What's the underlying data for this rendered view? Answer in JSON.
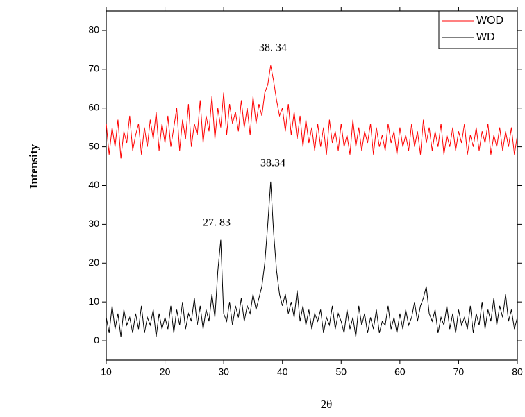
{
  "chart_data": {
    "type": "line",
    "xlabel": "2θ",
    "ylabel": "Intensity",
    "annotations": [
      "38. 34",
      "38.34",
      "27. 83"
    ],
    "xlim": [
      10,
      80
    ],
    "xticks": [
      10,
      20,
      30,
      40,
      50,
      60,
      70,
      80
    ],
    "ylim": [
      -5,
      85
    ],
    "yticks": [
      0,
      10,
      20,
      30,
      40,
      50,
      60,
      70,
      80
    ],
    "legend": "upper right",
    "x": [
      10,
      10.5,
      11,
      11.5,
      12,
      12.5,
      13,
      13.5,
      14,
      14.5,
      15,
      15.5,
      16,
      16.5,
      17,
      17.5,
      18,
      18.5,
      19,
      19.5,
      20,
      20.5,
      21,
      21.5,
      22,
      22.5,
      23,
      23.5,
      24,
      24.5,
      25,
      25.5,
      26,
      26.5,
      27,
      27.5,
      28,
      28.5,
      29,
      29.5,
      30,
      30.5,
      31,
      31.5,
      32,
      32.5,
      33,
      33.5,
      34,
      34.5,
      35,
      35.5,
      36,
      36.5,
      37,
      37.5,
      38,
      38.5,
      39,
      39.5,
      40,
      40.5,
      41,
      41.5,
      42,
      42.5,
      43,
      43.5,
      44,
      44.5,
      45,
      45.5,
      46,
      46.5,
      47,
      47.5,
      48,
      48.5,
      49,
      49.5,
      50,
      50.5,
      51,
      51.5,
      52,
      52.5,
      53,
      53.5,
      54,
      54.5,
      55,
      55.5,
      56,
      56.5,
      57,
      57.5,
      58,
      58.5,
      59,
      59.5,
      60,
      60.5,
      61,
      61.5,
      62,
      62.5,
      63,
      63.5,
      64,
      64.5,
      65,
      65.5,
      66,
      66.5,
      67,
      67.5,
      68,
      68.5,
      69,
      69.5,
      70,
      70.5,
      71,
      71.5,
      72,
      72.5,
      73,
      73.5,
      74,
      74.5,
      75,
      75.5,
      76,
      76.5,
      77,
      77.5,
      78,
      78.5,
      79,
      79.5,
      80
    ],
    "series": [
      {
        "name": "WOD",
        "color": "#ff0000",
        "values": [
          56,
          48,
          55,
          50,
          57,
          47,
          54,
          51,
          58,
          49,
          53,
          56,
          48,
          55,
          50,
          57,
          52,
          59,
          49,
          56,
          51,
          58,
          50,
          55,
          60,
          49,
          57,
          52,
          61,
          50,
          56,
          53,
          62,
          51,
          58,
          54,
          63,
          52,
          60,
          55,
          64,
          53,
          61,
          56,
          59,
          54,
          62,
          55,
          60,
          53,
          63,
          56,
          61,
          58,
          64,
          66,
          71,
          67,
          62,
          58,
          60,
          54,
          61,
          53,
          59,
          52,
          58,
          50,
          57,
          51,
          55,
          49,
          56,
          50,
          55,
          48,
          57,
          51,
          54,
          49,
          56,
          50,
          53,
          48,
          57,
          50,
          55,
          49,
          54,
          51,
          56,
          48,
          55,
          50,
          53,
          49,
          56,
          51,
          54,
          48,
          55,
          50,
          53,
          49,
          56,
          50,
          54,
          48,
          57,
          51,
          55,
          49,
          54,
          50,
          56,
          48,
          53,
          50,
          55,
          49,
          54,
          51,
          56,
          48,
          53,
          50,
          55,
          49,
          54,
          51,
          56,
          48,
          53,
          50,
          55,
          49,
          54,
          50,
          55,
          48,
          53
        ]
      },
      {
        "name": "WD",
        "color": "#000000",
        "values": [
          6,
          2,
          9,
          3,
          7,
          1,
          8,
          4,
          6,
          2,
          7,
          3,
          9,
          2,
          6,
          4,
          8,
          1,
          7,
          3,
          6,
          3,
          9,
          2,
          8,
          4,
          10,
          3,
          7,
          5,
          11,
          4,
          9,
          3,
          8,
          5,
          12,
          6,
          18,
          26,
          7,
          5,
          10,
          4,
          9,
          6,
          11,
          5,
          9,
          7,
          12,
          8,
          11,
          14,
          20,
          30,
          41,
          28,
          18,
          12,
          9,
          12,
          7,
          10,
          6,
          13,
          5,
          9,
          4,
          8,
          3,
          7,
          5,
          8,
          2,
          6,
          4,
          9,
          3,
          7,
          5,
          2,
          8,
          3,
          6,
          1,
          9,
          4,
          7,
          2,
          6,
          3,
          8,
          2,
          5,
          4,
          9,
          3,
          6,
          2,
          7,
          3,
          8,
          4,
          6,
          10,
          5,
          9,
          11,
          14,
          7,
          5,
          8,
          2,
          6,
          4,
          9,
          3,
          7,
          2,
          8,
          4,
          6,
          3,
          9,
          2,
          7,
          4,
          10,
          3,
          8,
          5,
          11,
          4,
          9,
          6,
          12,
          5,
          8,
          3,
          6
        ]
      }
    ]
  }
}
